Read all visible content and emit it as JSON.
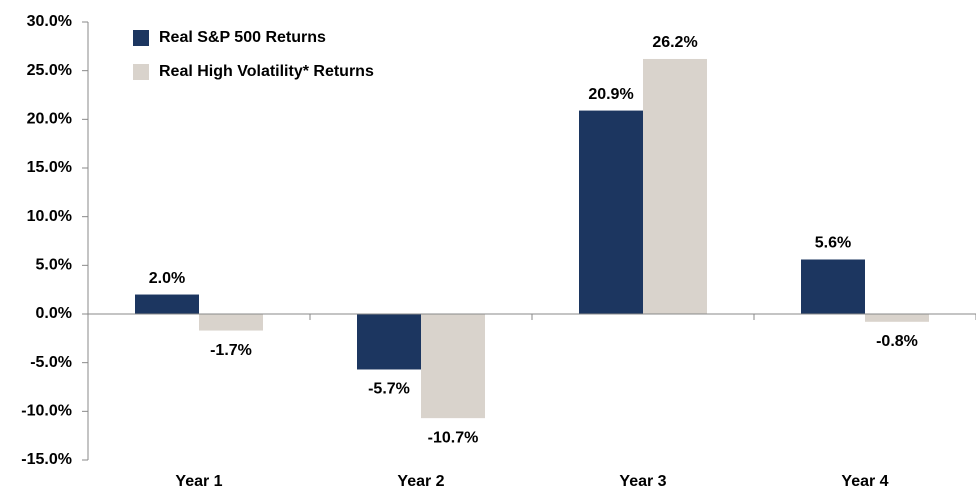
{
  "chart_data": {
    "type": "bar",
    "categories": [
      "Year 1",
      "Year 2",
      "Year 3",
      "Year 4"
    ],
    "series": [
      {
        "name": "Real S&P 500 Returns",
        "color": "#1c3660",
        "values": [
          2.0,
          -5.7,
          20.9,
          5.6
        ],
        "value_labels": [
          "2.0%",
          "-5.7%",
          "20.9%",
          "5.6%"
        ]
      },
      {
        "name": "Real High Volatility* Returns",
        "color": "#d9d3cc",
        "values": [
          -1.7,
          -10.7,
          26.2,
          -0.8
        ],
        "value_labels": [
          "-1.7%",
          "-10.7%",
          "26.2%",
          "-0.8%"
        ]
      }
    ],
    "ylim": [
      -15,
      30
    ],
    "yticks": [
      {
        "value": -15,
        "label": "-15.0%"
      },
      {
        "value": -10,
        "label": "-10.0%"
      },
      {
        "value": -5,
        "label": "-5.0%"
      },
      {
        "value": 0,
        "label": "0.0%"
      },
      {
        "value": 5,
        "label": "5.0%"
      },
      {
        "value": 10,
        "label": "10.0%"
      },
      {
        "value": 15,
        "label": "15.0%"
      },
      {
        "value": 20,
        "label": "20.0%"
      },
      {
        "value": 25,
        "label": "25.0%"
      },
      {
        "value": 30,
        "label": "30.0%"
      }
    ],
    "legend": "upper left"
  }
}
